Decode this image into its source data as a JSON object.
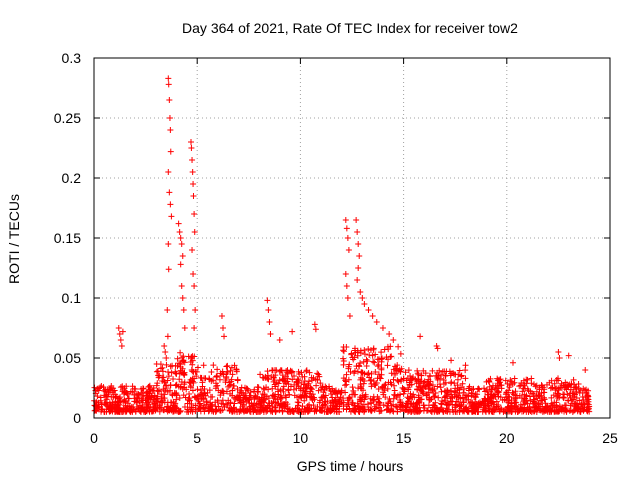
{
  "chart_data": {
    "type": "scatter",
    "title": "Day 364 of 2021, Rate Of TEC Index for receiver tow2",
    "xlabel": "GPS time / hours",
    "ylabel": "ROTI / TECUs",
    "xlim": [
      0,
      25
    ],
    "ylim": [
      0,
      0.3
    ],
    "x_ticks": [
      0,
      5,
      10,
      15,
      20,
      25
    ],
    "x_tick_labels": [
      "0",
      "5",
      "10",
      "15",
      "20",
      "25"
    ],
    "y_ticks": [
      0,
      0.05,
      0.1,
      0.15,
      0.2,
      0.25,
      0.3
    ],
    "y_tick_labels": [
      "0",
      "0.05",
      "0.1",
      "0.15",
      "0.2",
      "0.25",
      "0.3"
    ],
    "grid": true,
    "marker": "+",
    "color": "#ff0000",
    "series": [
      {
        "name": "ROTI",
        "x_range": [
          0,
          24
        ],
        "baseline_range": [
          0.005,
          0.03
        ],
        "points": [
          [
            1.2,
            0.075
          ],
          [
            1.25,
            0.07
          ],
          [
            1.3,
            0.065
          ],
          [
            1.35,
            0.06
          ],
          [
            1.4,
            0.072
          ],
          [
            3.4,
            0.06
          ],
          [
            3.45,
            0.055
          ],
          [
            3.5,
            0.05
          ],
          [
            3.6,
            0.283
          ],
          [
            3.62,
            0.278
          ],
          [
            3.65,
            0.265
          ],
          [
            3.68,
            0.25
          ],
          [
            3.7,
            0.24
          ],
          [
            3.72,
            0.222
          ],
          [
            3.6,
            0.205
          ],
          [
            3.65,
            0.188
          ],
          [
            3.7,
            0.178
          ],
          [
            3.75,
            0.168
          ],
          [
            3.6,
            0.145
          ],
          [
            3.62,
            0.124
          ],
          [
            3.55,
            0.09
          ],
          [
            3.58,
            0.068
          ],
          [
            4.1,
            0.162
          ],
          [
            4.15,
            0.155
          ],
          [
            4.2,
            0.15
          ],
          [
            4.25,
            0.145
          ],
          [
            4.3,
            0.135
          ],
          [
            4.2,
            0.128
          ],
          [
            4.25,
            0.11
          ],
          [
            4.3,
            0.1
          ],
          [
            4.35,
            0.09
          ],
          [
            4.4,
            0.075
          ],
          [
            4.7,
            0.23
          ],
          [
            4.72,
            0.225
          ],
          [
            4.75,
            0.215
          ],
          [
            4.78,
            0.205
          ],
          [
            4.8,
            0.195
          ],
          [
            4.82,
            0.185
          ],
          [
            4.85,
            0.17
          ],
          [
            4.88,
            0.155
          ],
          [
            4.75,
            0.14
          ],
          [
            4.8,
            0.12
          ],
          [
            4.85,
            0.11
          ],
          [
            4.9,
            0.09
          ],
          [
            4.85,
            0.075
          ],
          [
            6.2,
            0.085
          ],
          [
            6.25,
            0.075
          ],
          [
            6.3,
            0.068
          ],
          [
            8.4,
            0.098
          ],
          [
            8.45,
            0.09
          ],
          [
            8.5,
            0.08
          ],
          [
            8.55,
            0.07
          ],
          [
            9.0,
            0.065
          ],
          [
            9.6,
            0.072
          ],
          [
            10.7,
            0.078
          ],
          [
            10.75,
            0.074
          ],
          [
            12.2,
            0.165
          ],
          [
            12.25,
            0.158
          ],
          [
            12.3,
            0.15
          ],
          [
            12.35,
            0.14
          ],
          [
            12.2,
            0.12
          ],
          [
            12.25,
            0.11
          ],
          [
            12.3,
            0.1
          ],
          [
            12.4,
            0.085
          ],
          [
            12.7,
            0.165
          ],
          [
            12.75,
            0.155
          ],
          [
            12.8,
            0.145
          ],
          [
            12.85,
            0.135
          ],
          [
            12.8,
            0.125
          ],
          [
            12.75,
            0.115
          ],
          [
            12.9,
            0.105
          ],
          [
            13.0,
            0.1
          ],
          [
            13.1,
            0.095
          ],
          [
            13.3,
            0.09
          ],
          [
            13.5,
            0.085
          ],
          [
            13.7,
            0.08
          ],
          [
            14.0,
            0.075
          ],
          [
            14.3,
            0.07
          ],
          [
            14.5,
            0.065
          ],
          [
            15.8,
            0.068
          ],
          [
            16.6,
            0.06
          ],
          [
            16.65,
            0.058
          ],
          [
            17.3,
            0.048
          ],
          [
            18.0,
            0.044
          ],
          [
            20.3,
            0.046
          ],
          [
            22.5,
            0.055
          ],
          [
            22.55,
            0.05
          ],
          [
            23.0,
            0.052
          ],
          [
            23.8,
            0.04
          ]
        ]
      }
    ]
  }
}
